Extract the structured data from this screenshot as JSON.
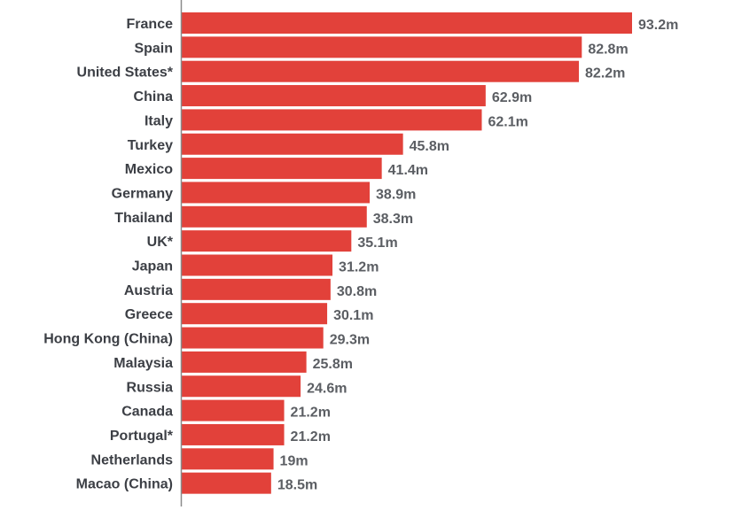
{
  "chart_data": {
    "type": "bar",
    "orientation": "horizontal",
    "title": "",
    "xlabel": "",
    "ylabel": "",
    "bar_color": "#e2413a",
    "value_suffix": "m",
    "xlim": [
      0,
      93.2
    ],
    "grid": false,
    "legend": "none",
    "categories": [
      "France",
      "Spain",
      "United States*",
      "China",
      "Italy",
      "Turkey",
      "Mexico",
      "Germany",
      "Thailand",
      "UK*",
      "Japan",
      "Austria",
      "Greece",
      "Hong Kong (China)",
      "Malaysia",
      "Russia",
      "Canada",
      "Portugal*",
      "Netherlands",
      "Macao (China)"
    ],
    "values": [
      93.2,
      82.8,
      82.2,
      62.9,
      62.1,
      45.8,
      41.4,
      38.9,
      38.3,
      35.1,
      31.2,
      30.8,
      30.1,
      29.3,
      25.8,
      24.6,
      21.2,
      21.2,
      19,
      18.5
    ],
    "value_labels": [
      "93.2m",
      "82.8m",
      "82.2m",
      "62.9m",
      "62.1m",
      "45.8m",
      "41.4m",
      "38.9m",
      "38.3m",
      "35.1m",
      "31.2m",
      "30.8m",
      "30.1m",
      "29.3m",
      "25.8m",
      "24.6m",
      "21.2m",
      "21.2m",
      "19m",
      "18.5m"
    ]
  }
}
